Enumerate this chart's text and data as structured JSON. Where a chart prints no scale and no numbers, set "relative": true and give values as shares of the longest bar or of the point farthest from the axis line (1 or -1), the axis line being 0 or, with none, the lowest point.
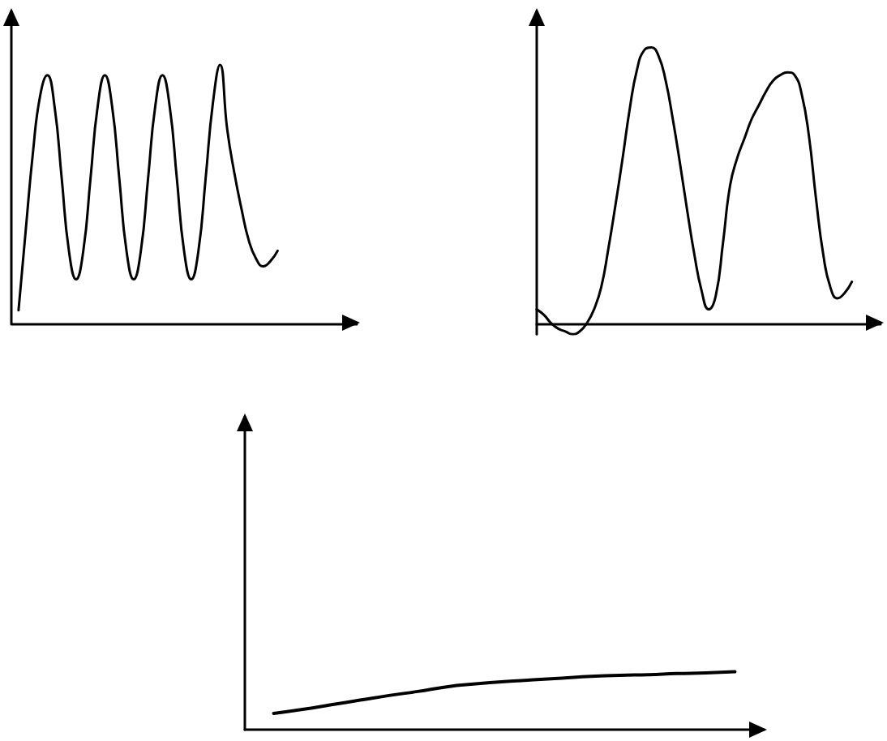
{
  "chart_data": [
    {
      "type": "line",
      "relative": true,
      "tick_labels": false,
      "color": "#000000",
      "categories": [
        null,
        null,
        null,
        null,
        null,
        null,
        null,
        null,
        null,
        null,
        null,
        null,
        null,
        null,
        null,
        null,
        null,
        null,
        null,
        null,
        null,
        null,
        null,
        null,
        null,
        null,
        null,
        null,
        null,
        null,
        null,
        null,
        null,
        null,
        null,
        null,
        null,
        null,
        null,
        null,
        null,
        null,
        null,
        null,
        null,
        null,
        null,
        null,
        null
      ],
      "values": [
        null,
        0.05,
        0.36,
        0.66,
        0.88,
        0.96,
        0.84,
        0.56,
        0.28,
        0.17,
        0.28,
        0.56,
        0.84,
        0.96,
        0.84,
        0.56,
        0.28,
        0.17,
        0.28,
        0.56,
        0.84,
        0.96,
        0.84,
        0.56,
        0.28,
        0.17,
        0.28,
        0.56,
        0.85,
        1,
        0.75,
        0.58,
        0.44,
        0.32,
        0.25,
        0.22,
        0.24,
        0.28,
        null,
        null,
        null,
        null,
        null,
        null,
        null,
        null,
        null,
        null,
        null
      ]
    },
    {
      "type": "line",
      "relative": true,
      "tick_labels": false,
      "color": "#000000",
      "categories": [
        null,
        null,
        null,
        null,
        null,
        null,
        null,
        null,
        null,
        null,
        null,
        null,
        null,
        null,
        null,
        null,
        null,
        null,
        null,
        null,
        null,
        null,
        null,
        null,
        null,
        null,
        null,
        null,
        null,
        null,
        null,
        null,
        null,
        null,
        null,
        null,
        null,
        null,
        null,
        null,
        null,
        null,
        null,
        null,
        null,
        null,
        null,
        null,
        null
      ],
      "values": [
        0.05,
        0.03,
        0,
        -0.02,
        -0.03,
        -0.04,
        -0.03,
        0,
        0.05,
        0.13,
        0.27,
        0.43,
        0.6,
        0.78,
        0.92,
        0.99,
        1,
        0.97,
        0.88,
        0.74,
        0.58,
        0.41,
        0.25,
        0.12,
        0.05,
        0.1,
        0.29,
        0.5,
        0.6,
        0.67,
        0.74,
        0.79,
        0.84,
        0.88,
        0.9,
        0.91,
        0.9,
        0.83,
        0.68,
        0.45,
        0.25,
        0.13,
        0.09,
        0.11,
        0.15,
        null,
        null,
        null,
        null
      ]
    },
    {
      "type": "line",
      "relative": true,
      "tick_labels": false,
      "color": "#000000",
      "categories": [
        null,
        null,
        null,
        null,
        null,
        null,
        null,
        null,
        null,
        null,
        null,
        null,
        null,
        null,
        null,
        null,
        null,
        null,
        null
      ],
      "values": [
        null,
        0.28,
        0.35,
        0.43,
        0.51,
        0.59,
        0.66,
        0.74,
        0.79,
        0.83,
        0.86,
        0.89,
        0.92,
        0.94,
        0.95,
        0.97,
        0.98,
        1,
        null
      ]
    }
  ]
}
